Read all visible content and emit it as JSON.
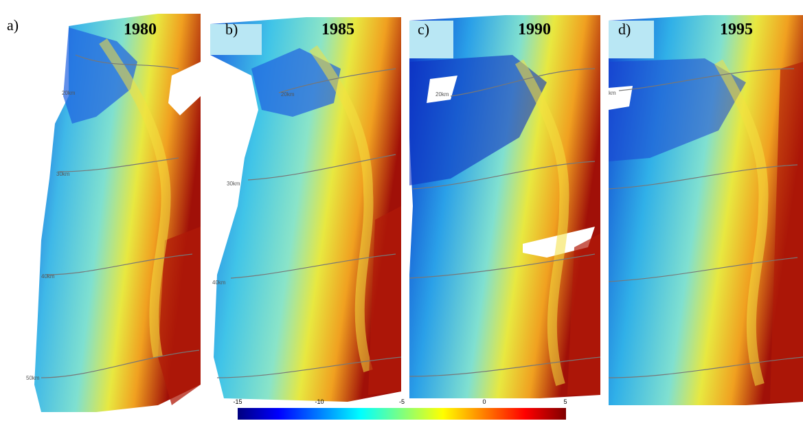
{
  "panels": [
    {
      "letter": "a)",
      "year": "1980",
      "km_labels": [
        "20km",
        "30km",
        "40km",
        "50km"
      ]
    },
    {
      "letter": "b)",
      "year": "1985",
      "km_labels": [
        "20km",
        "30km",
        "40km"
      ]
    },
    {
      "letter": "c)",
      "year": "1990",
      "km_labels": [
        "20km"
      ]
    },
    {
      "letter": "d)",
      "year": "1995",
      "km_labels": [
        "km"
      ]
    }
  ],
  "colorbar": {
    "ticks": [
      "-15",
      "-10",
      "-5",
      "0",
      "5"
    ],
    "min": -15,
    "max": 5,
    "colormap": "jet",
    "colors": [
      "#00007f",
      "#0000ff",
      "#007fff",
      "#00ffff",
      "#7fff7f",
      "#ffff00",
      "#ff7f00",
      "#ff0000",
      "#7f0000"
    ]
  }
}
